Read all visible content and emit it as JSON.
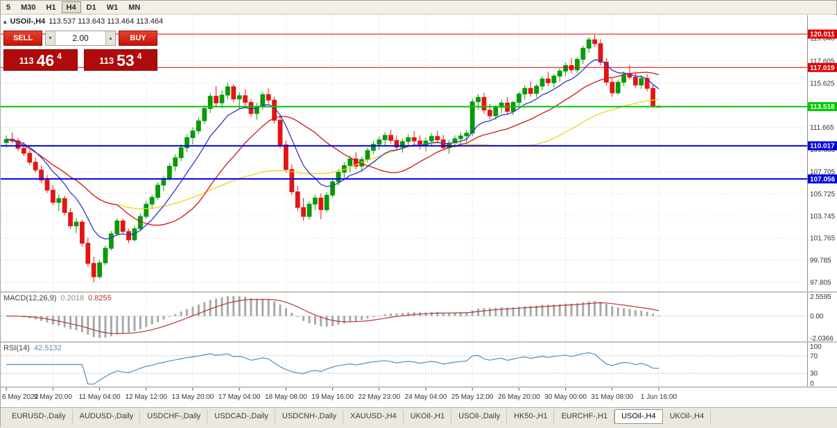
{
  "toolbar": {
    "timeframes": [
      "5",
      "M30",
      "H1",
      "H4",
      "D1",
      "W1",
      "MN"
    ],
    "active": "H4"
  },
  "chart_title": {
    "collapse_icon": "▴",
    "symbol": "USOil-,H4",
    "ohlc": "113.537 113.643 113.464 113.464"
  },
  "trade_panel": {
    "sell_label": "SELL",
    "buy_label": "BUY",
    "lot_value": "2.00",
    "spin_up_icon": "▲",
    "spin_down_icon": "▼",
    "sell_price_prefix": "113",
    "sell_price_big": "46",
    "sell_price_sup": "4",
    "buy_price_prefix": "113",
    "buy_price_big": "53",
    "buy_price_sup": "4"
  },
  "colors": {
    "up": "#089a08",
    "down": "#e41414"
  },
  "chart_data": {
    "type": "candlestick",
    "symbol": "USOil-,H4",
    "price_ticks": [
      "119.640",
      "117.605",
      "115.625",
      "113.645",
      "111.665",
      "109.685",
      "107.705",
      "105.725",
      "103.745",
      "101.765",
      "99.785",
      "97.805"
    ],
    "levels": [
      {
        "label": "120.011",
        "value": 120.011,
        "color": "#e00000",
        "width": 1
      },
      {
        "label": "117.019",
        "value": 117.019,
        "color": "#e00000",
        "width": 1
      },
      {
        "label": "113.518",
        "value": 113.518,
        "color": "#00c800",
        "width": 2
      },
      {
        "label": "110.017",
        "value": 110.017,
        "color": "#0000dd",
        "width": 2
      },
      {
        "label": "107.056",
        "value": 107.056,
        "color": "#0000dd",
        "width": 2
      }
    ],
    "time_labels": [
      {
        "text": "6 May 2022",
        "bar": 0
      },
      {
        "text": "9 May 20:00",
        "bar": 8
      },
      {
        "text": "11 May 04:00",
        "bar": 16
      },
      {
        "text": "12 May 12:00",
        "bar": 24
      },
      {
        "text": "13 May 20:00",
        "bar": 32
      },
      {
        "text": "17 May 04:00",
        "bar": 40
      },
      {
        "text": "18 May 08:00",
        "bar": 48
      },
      {
        "text": "19 May 16:00",
        "bar": 56
      },
      {
        "text": "22 May 23:00",
        "bar": 64
      },
      {
        "text": "24 May 04:00",
        "bar": 72
      },
      {
        "text": "25 May 12:00",
        "bar": 80
      },
      {
        "text": "26 May 20:00",
        "bar": 88
      },
      {
        "text": "30 May 00:00",
        "bar": 96
      },
      {
        "text": "31 May 08:00",
        "bar": 104
      },
      {
        "text": "1 Jun 16:00",
        "bar": 112
      }
    ],
    "moving_averages": [
      {
        "name": "ma-slow-yellow",
        "type": "sma",
        "period": 45,
        "color": "#f0d414"
      },
      {
        "name": "ma-mid-red",
        "type": "sma",
        "period": 20,
        "color": "#d21414"
      },
      {
        "name": "ma-fast-blue",
        "type": "ema",
        "period": 9,
        "color": "#2a35c8"
      }
    ],
    "macd": {
      "label": "MACD(12,26,9)",
      "value_main": "0.2018",
      "value_signal": "0.8255",
      "fast": 12,
      "slow": 26,
      "signal_period": 9,
      "axis_labels": [
        "2.5595",
        "0.00",
        "-2.0366"
      ],
      "hist_color": "#a8a8a8",
      "signal_color": "#b53535"
    },
    "rsi": {
      "label": "RSI(14)",
      "value": "42.5132",
      "period": 14,
      "color": "#4f8fc0",
      "levels": [
        70,
        30
      ],
      "axis_labels": [
        "100",
        "70",
        "30",
        "0"
      ]
    },
    "candles": [
      [
        110.3,
        110.95,
        109.85,
        110.6
      ],
      [
        110.6,
        111.2,
        110.25,
        110.45
      ],
      [
        110.45,
        110.7,
        109.55,
        109.8
      ],
      [
        109.8,
        110.35,
        109.1,
        109.35
      ],
      [
        109.35,
        109.6,
        108.3,
        108.55
      ],
      [
        108.55,
        108.95,
        107.6,
        107.85
      ],
      [
        107.85,
        108.25,
        106.7,
        106.95
      ],
      [
        106.95,
        107.4,
        105.8,
        106.05
      ],
      [
        106.05,
        106.5,
        104.7,
        104.95
      ],
      [
        104.95,
        105.65,
        104.2,
        105.3
      ],
      [
        105.3,
        105.55,
        103.8,
        104.05
      ],
      [
        104.05,
        104.45,
        102.6,
        102.85
      ],
      [
        102.85,
        103.55,
        102.2,
        103.2
      ],
      [
        103.2,
        103.4,
        101.0,
        101.3
      ],
      [
        101.3,
        101.8,
        99.2,
        99.5
      ],
      [
        99.5,
        100.1,
        97.8,
        98.3
      ],
      [
        98.3,
        99.8,
        98.1,
        99.55
      ],
      [
        99.55,
        101.1,
        99.35,
        100.85
      ],
      [
        100.85,
        102.4,
        100.65,
        102.15
      ],
      [
        102.15,
        103.55,
        101.95,
        103.3
      ],
      [
        103.3,
        103.5,
        102.1,
        102.35
      ],
      [
        102.35,
        102.6,
        101.3,
        101.6
      ],
      [
        101.6,
        102.85,
        101.45,
        102.6
      ],
      [
        102.6,
        103.95,
        102.4,
        103.7
      ],
      [
        103.7,
        105.05,
        103.5,
        104.8
      ],
      [
        104.8,
        105.65,
        104.35,
        105.4
      ],
      [
        105.4,
        106.75,
        105.2,
        106.5
      ],
      [
        106.5,
        107.35,
        105.95,
        107.1
      ],
      [
        107.1,
        108.45,
        106.9,
        108.2
      ],
      [
        108.2,
        109.25,
        107.75,
        108.95
      ],
      [
        108.95,
        110.15,
        108.65,
        109.85
      ],
      [
        109.85,
        111.05,
        109.45,
        110.75
      ],
      [
        110.75,
        111.65,
        110.15,
        111.35
      ],
      [
        111.35,
        112.55,
        111.05,
        112.25
      ],
      [
        112.25,
        113.65,
        111.95,
        113.35
      ],
      [
        113.35,
        114.75,
        112.95,
        114.45
      ],
      [
        114.45,
        115.35,
        113.45,
        113.85
      ],
      [
        113.85,
        114.95,
        113.35,
        114.55
      ],
      [
        114.55,
        115.65,
        114.15,
        115.3
      ],
      [
        115.3,
        115.55,
        113.9,
        114.2
      ],
      [
        114.2,
        114.8,
        113.3,
        114.5
      ],
      [
        114.5,
        115.1,
        113.6,
        113.9
      ],
      [
        113.9,
        114.2,
        112.6,
        112.9
      ],
      [
        112.9,
        113.85,
        112.35,
        113.55
      ],
      [
        113.55,
        114.85,
        113.25,
        114.6
      ],
      [
        114.6,
        115.15,
        113.8,
        114.1
      ],
      [
        114.1,
        114.4,
        112.0,
        112.3
      ],
      [
        112.3,
        112.6,
        109.8,
        110.1
      ],
      [
        110.1,
        110.45,
        107.6,
        107.9
      ],
      [
        107.9,
        108.35,
        105.6,
        105.9
      ],
      [
        105.9,
        106.45,
        104.2,
        104.5
      ],
      [
        104.5,
        105.35,
        103.3,
        103.7
      ],
      [
        103.7,
        105.05,
        103.4,
        104.8
      ],
      [
        104.8,
        105.65,
        104.25,
        105.35
      ],
      [
        105.35,
        105.75,
        103.45,
        104.3
      ],
      [
        104.3,
        105.85,
        104.1,
        105.6
      ],
      [
        105.6,
        107.05,
        105.4,
        106.8
      ],
      [
        106.8,
        107.95,
        106.45,
        107.65
      ],
      [
        107.65,
        108.55,
        107.15,
        108.25
      ],
      [
        108.25,
        109.15,
        107.65,
        108.85
      ],
      [
        108.85,
        109.45,
        107.9,
        108.2
      ],
      [
        108.2,
        109.05,
        107.7,
        108.8
      ],
      [
        108.8,
        109.85,
        108.55,
        109.6
      ],
      [
        109.6,
        110.45,
        109.25,
        110.15
      ],
      [
        110.15,
        110.85,
        109.65,
        110.55
      ],
      [
        110.55,
        111.25,
        110.05,
        110.95
      ],
      [
        110.95,
        111.45,
        110.2,
        110.5
      ],
      [
        110.5,
        110.95,
        109.6,
        109.9
      ],
      [
        109.9,
        110.65,
        109.4,
        110.4
      ],
      [
        110.4,
        111.05,
        109.95,
        110.75
      ],
      [
        110.75,
        111.35,
        110.1,
        110.45
      ],
      [
        110.45,
        110.95,
        109.7,
        110.0
      ],
      [
        110.0,
        110.75,
        109.5,
        110.45
      ],
      [
        110.45,
        111.15,
        109.95,
        110.85
      ],
      [
        110.85,
        111.35,
        110.2,
        110.55
      ],
      [
        110.55,
        111.0,
        109.6,
        109.85
      ],
      [
        109.85,
        110.55,
        109.3,
        110.25
      ],
      [
        110.25,
        110.95,
        109.85,
        110.65
      ],
      [
        110.65,
        111.25,
        110.15,
        110.9
      ],
      [
        110.9,
        111.45,
        110.35,
        111.15
      ],
      [
        111.15,
        114.25,
        110.85,
        113.95
      ],
      [
        113.95,
        114.65,
        113.25,
        114.35
      ],
      [
        114.35,
        114.75,
        112.9,
        113.2
      ],
      [
        113.2,
        113.75,
        112.4,
        112.7
      ],
      [
        112.7,
        113.65,
        112.35,
        113.45
      ],
      [
        113.45,
        114.15,
        112.95,
        113.85
      ],
      [
        113.85,
        114.35,
        112.8,
        113.1
      ],
      [
        113.1,
        114.05,
        112.75,
        113.9
      ],
      [
        113.9,
        114.85,
        113.55,
        114.65
      ],
      [
        114.65,
        115.45,
        114.15,
        115.15
      ],
      [
        115.15,
        115.75,
        114.4,
        114.7
      ],
      [
        114.7,
        115.55,
        114.35,
        115.35
      ],
      [
        115.35,
        116.25,
        114.95,
        116.0
      ],
      [
        116.0,
        116.65,
        115.35,
        115.65
      ],
      [
        115.65,
        116.45,
        115.25,
        116.25
      ],
      [
        116.25,
        116.95,
        115.75,
        116.7
      ],
      [
        116.7,
        117.45,
        116.25,
        117.2
      ],
      [
        117.2,
        117.85,
        116.5,
        116.8
      ],
      [
        116.8,
        117.95,
        116.55,
        117.75
      ],
      [
        117.75,
        118.95,
        117.35,
        118.75
      ],
      [
        118.75,
        119.75,
        118.35,
        119.5
      ],
      [
        119.5,
        119.92,
        118.85,
        119.15
      ],
      [
        119.15,
        119.55,
        117.2,
        117.5
      ],
      [
        117.5,
        117.85,
        115.4,
        115.7
      ],
      [
        115.7,
        116.05,
        114.4,
        114.75
      ],
      [
        114.75,
        115.95,
        114.55,
        115.7
      ],
      [
        115.7,
        116.65,
        115.35,
        116.4
      ],
      [
        116.4,
        117.25,
        115.95,
        116.15
      ],
      [
        116.15,
        116.55,
        115.2,
        115.45
      ],
      [
        115.45,
        116.35,
        115.1,
        116.05
      ],
      [
        116.05,
        116.45,
        114.9,
        115.15
      ],
      [
        115.15,
        115.55,
        113.4,
        113.55
      ],
      [
        113.537,
        113.643,
        113.464,
        113.464
      ]
    ]
  },
  "tabs": {
    "items": [
      "EURUSD-,Daily",
      "AUDUSD-,Daily",
      "USDCHF-,Daily",
      "USDCAD-,Daily",
      "USDCNH-,Daily",
      "XAUUSD-,H4",
      "UKOil-,H1",
      "USOil-,Daily",
      "HK50-,H1",
      "EURCHF-,H1",
      "USOil-,H4",
      "UKOil-,H4"
    ],
    "active_index": 10
  }
}
